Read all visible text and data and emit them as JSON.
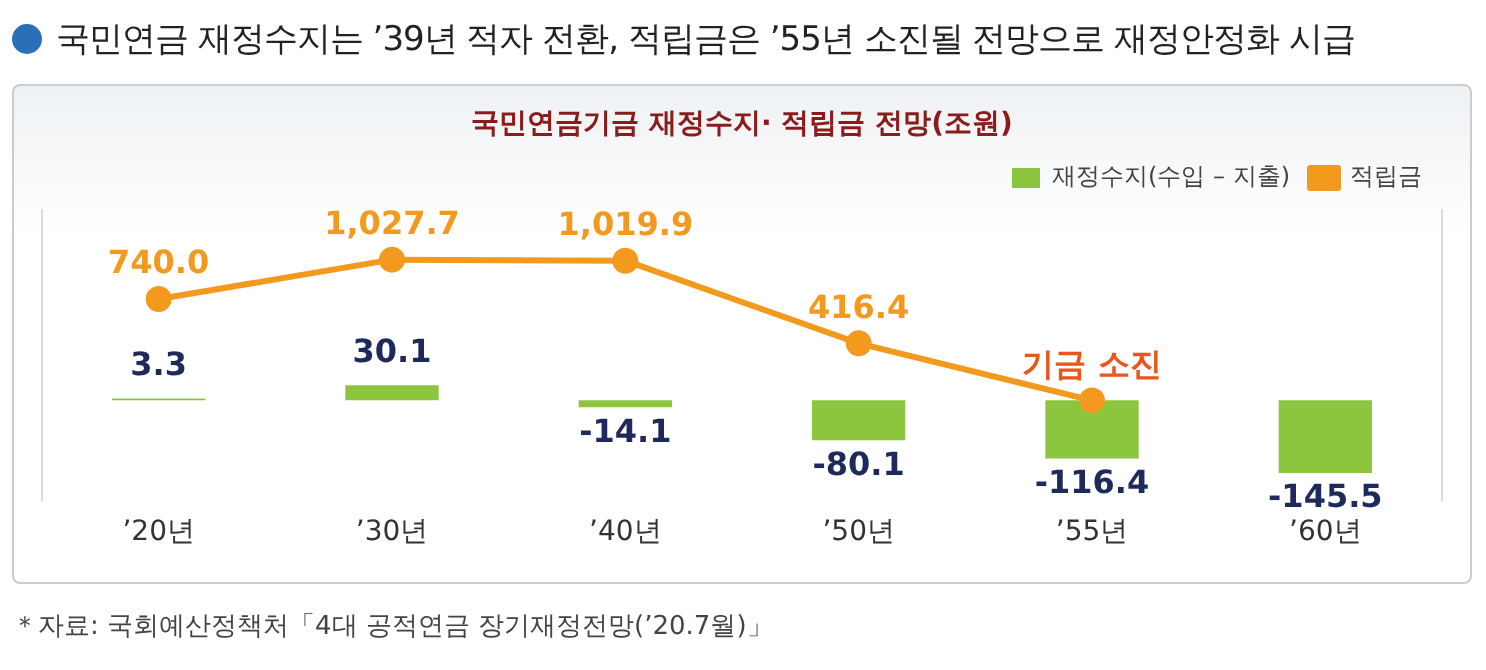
{
  "chart_data": {
    "type": "bar",
    "title": "국민연금 재정수지는 ’39년 적자 전환, 적립금은 ’55년 소진될 전망으로 재정안정화 시급",
    "subtitle": "국민연금기금 재정수지· 적립금 전망(조원)",
    "annotations": [
      "＊자료: 국회예산정책처「4대 공적연금 장기재정전망(’20.7월)」"
    ],
    "categories": [
      "’20년",
      "’30년",
      "’40년",
      "’50년",
      "’55년",
      "’60년"
    ],
    "series": [
      {
        "name": "재정수지(수입 – 지출)",
        "axis": "y",
        "color": "#8cc63e",
        "values": [
          3.3,
          30.1,
          -14.1,
          -80.1,
          -116.4,
          -145.5
        ],
        "value_labels": [
          "3.3",
          "30.1",
          "-14.1",
          "-80.1",
          "-116.4",
          "-145.5"
        ]
      },
      {
        "name": "적립금",
        "type": "line",
        "axis": "y2",
        "color": "#f39a1e",
        "values": [
          740.0,
          1027.7,
          1019.9,
          416.4,
          0,
          null
        ],
        "value_labels": [
          "740.0",
          "1,027.7",
          "1,019.9",
          "416.4",
          "기금 소진",
          null
        ]
      }
    ],
    "ylim": [
      -200,
      380
    ],
    "y2lim": [
      -730,
      1390
    ],
    "tick_labels": "x",
    "marker": "circle",
    "line_style": "solid",
    "grid": false,
    "legend": "top right"
  }
}
